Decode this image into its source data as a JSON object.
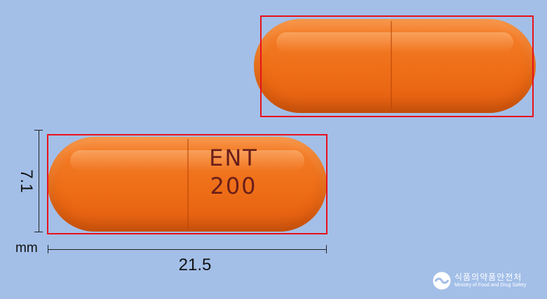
{
  "image": {
    "background": "#a3bfe8",
    "pill_color": "#ee6e17",
    "box_color": "#e8111a",
    "imprint_color": "#6a1e1a",
    "imprint_lines": [
      "ENT",
      "200"
    ]
  },
  "dimensions": {
    "length": "21.5",
    "width": "7.1",
    "unit": "mm"
  },
  "logo": {
    "icon": "taegeuk-emblem-icon",
    "korean": "식품의약품안전처",
    "english": "Ministry of Food and Drug Safety"
  }
}
